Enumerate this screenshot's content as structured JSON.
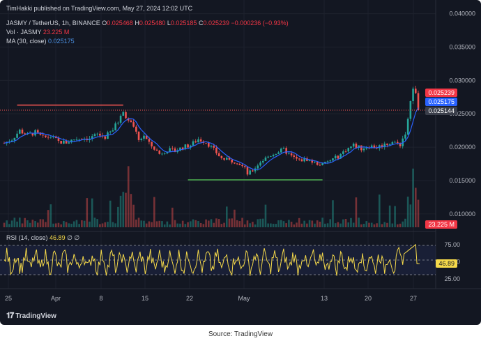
{
  "header": {
    "publisher_line": "TimHakki published on TradingView.com, May 27, 2024 12:02 UTC",
    "symbol": "JASMY / TetherUS, 1h, BINANCE",
    "ohlc": {
      "o_label": "O",
      "o": "0.025468",
      "h_label": "H",
      "h": "0.025480",
      "l_label": "L",
      "l": "0.025185",
      "c_label": "C",
      "c": "0.025239",
      "change": "−0.000236 (−0.93%)"
    },
    "vol_label": "Vol · JASMY",
    "vol_value": "23.225 M",
    "ma_label": "MA (30, close)",
    "ma_value": "0.025175",
    "rsi_label": "RSI (14, close)",
    "rsi_value": "46.89",
    "rsi_extra": "∅ ∅"
  },
  "price_axis": [
    "0.040000",
    "0.035000",
    "0.030000",
    "0.025000",
    "0.020000",
    "0.015000",
    "0.010000"
  ],
  "rsi_axis": [
    "75.00",
    "50.00",
    "25.00"
  ],
  "x_axis": [
    "25",
    "Apr",
    "8",
    "15",
    "22",
    "May",
    "13",
    "20",
    "27"
  ],
  "tags": {
    "price_last": "0.025239",
    "ma_last": "0.025175",
    "line_price": "0.025144",
    "volume": "23.225 M",
    "rsi": "46.89"
  },
  "footer": {
    "brand": "TradingView",
    "source": "Source: TradingView"
  },
  "colors": {
    "bg": "#131722",
    "up": "#26a69a",
    "down": "#ef5350",
    "ma": "#2962ff",
    "rsi": "#f5d94a",
    "resistance": "#ef5350",
    "support": "#4caf50"
  },
  "chart_data": {
    "type": "line",
    "price_ylim": [
      0.008,
      0.041
    ],
    "rsi_ylim": [
      15,
      90
    ],
    "price_path": [
      [
        0,
        0.0206
      ],
      [
        3,
        0.0212
      ],
      [
        6,
        0.0225
      ],
      [
        9,
        0.0218
      ],
      [
        12,
        0.0222
      ],
      [
        15,
        0.0214
      ],
      [
        18,
        0.0216
      ],
      [
        21,
        0.0208
      ],
      [
        24,
        0.0207
      ],
      [
        27,
        0.0212
      ],
      [
        30,
        0.0214
      ],
      [
        33,
        0.0213
      ],
      [
        36,
        0.0219
      ],
      [
        39,
        0.0215
      ],
      [
        42,
        0.0226
      ],
      [
        45,
        0.0245
      ],
      [
        46,
        0.0255
      ],
      [
        48,
        0.024
      ],
      [
        50,
        0.023
      ],
      [
        52,
        0.021
      ],
      [
        54,
        0.0218
      ],
      [
        56,
        0.0205
      ],
      [
        58,
        0.0198
      ],
      [
        60,
        0.019
      ],
      [
        63,
        0.0196
      ],
      [
        66,
        0.0194
      ],
      [
        69,
        0.02
      ],
      [
        72,
        0.0203
      ],
      [
        75,
        0.0212
      ],
      [
        78,
        0.0208
      ],
      [
        81,
        0.0196
      ],
      [
        84,
        0.0183
      ],
      [
        87,
        0.018
      ],
      [
        90,
        0.0178
      ],
      [
        93,
        0.0168
      ],
      [
        94,
        0.016
      ],
      [
        96,
        0.0165
      ],
      [
        99,
        0.0178
      ],
      [
        102,
        0.0186
      ],
      [
        105,
        0.0192
      ],
      [
        108,
        0.0196
      ],
      [
        111,
        0.0186
      ],
      [
        114,
        0.018
      ],
      [
        117,
        0.0182
      ],
      [
        120,
        0.0176
      ],
      [
        123,
        0.0174
      ],
      [
        126,
        0.018
      ],
      [
        129,
        0.0186
      ],
      [
        132,
        0.0196
      ],
      [
        135,
        0.0203
      ],
      [
        138,
        0.0198
      ],
      [
        141,
        0.0202
      ],
      [
        144,
        0.02
      ],
      [
        147,
        0.0204
      ],
      [
        150,
        0.0208
      ],
      [
        153,
        0.0204
      ],
      [
        155,
        0.0222
      ],
      [
        156,
        0.024
      ],
      [
        157,
        0.0268
      ],
      [
        158,
        0.0284
      ],
      [
        159,
        0.0278
      ],
      [
        160,
        0.0252
      ]
    ],
    "resistance": {
      "x": [
        5,
        46
      ],
      "y": 0.0263
    },
    "support": {
      "x": [
        71,
        123
      ],
      "y": 0.0151
    },
    "rsi_levels": [
      70,
      50,
      30
    ]
  }
}
